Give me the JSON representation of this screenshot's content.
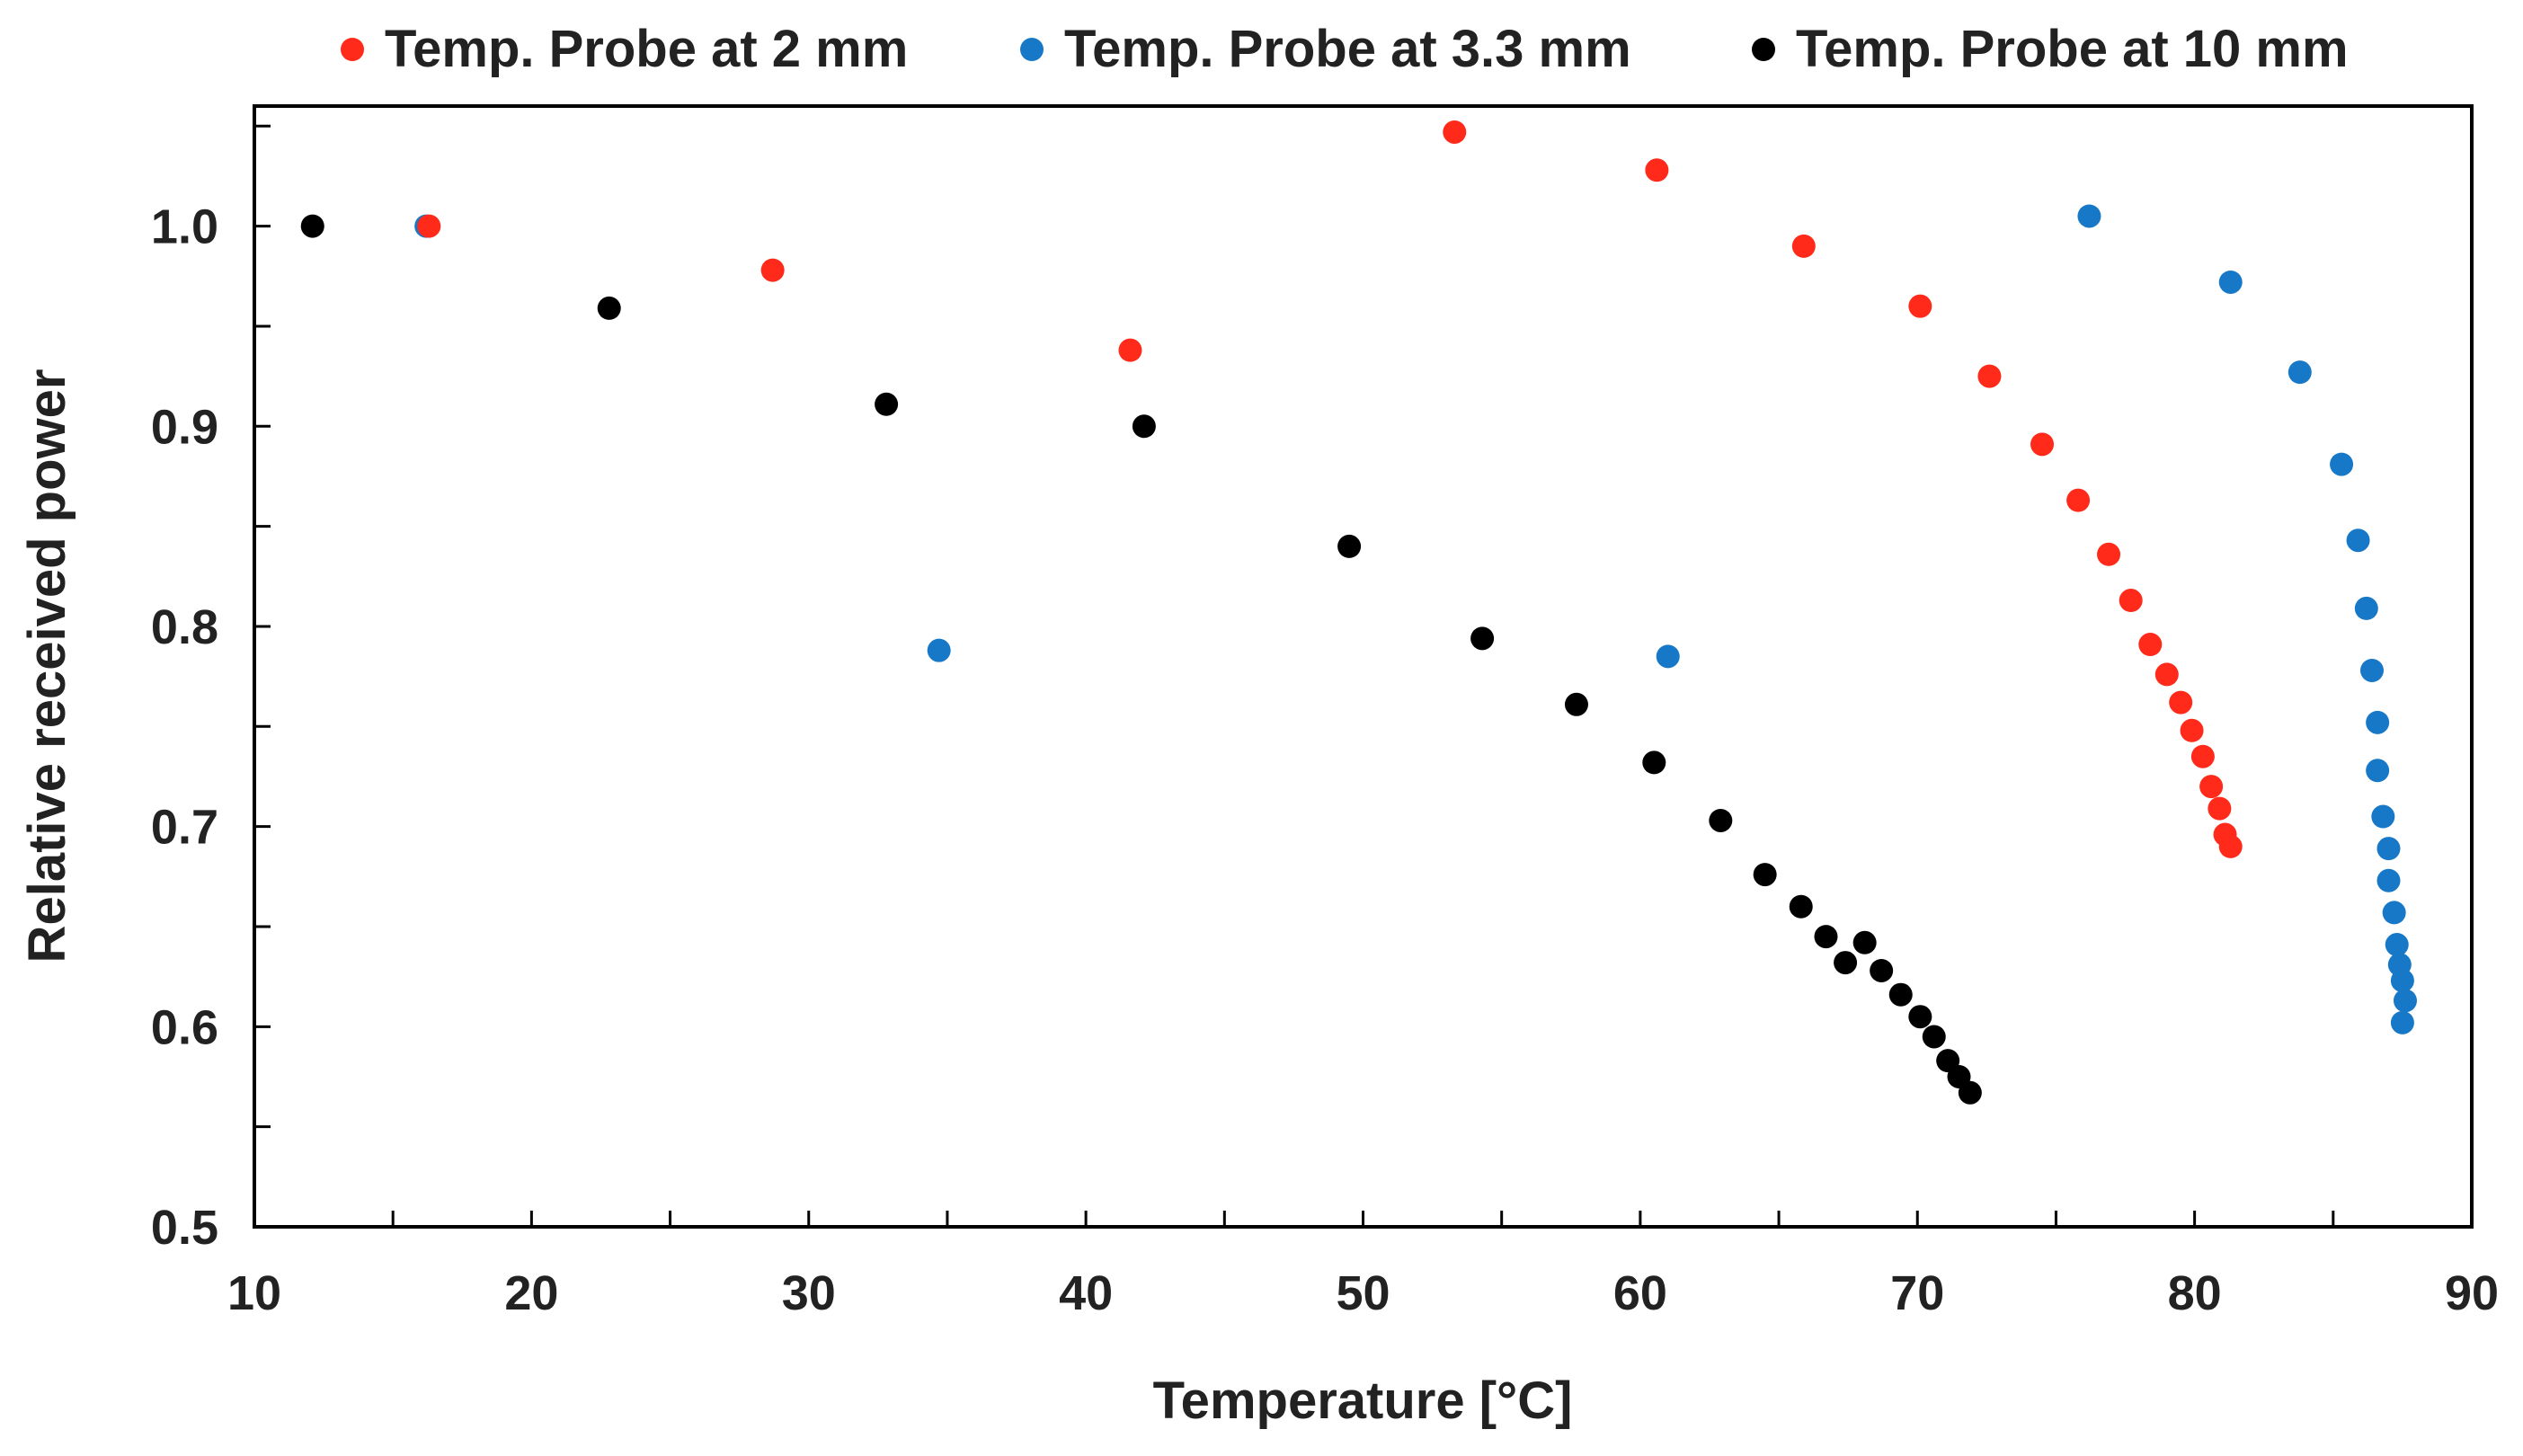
{
  "chart_data": {
    "type": "scatter",
    "title": "",
    "xlabel": "Temperature [°C]",
    "ylabel": "Relative received power",
    "xlim": [
      10,
      90
    ],
    "ylim": [
      0.5,
      1.06
    ],
    "x_ticks": [
      10,
      20,
      30,
      40,
      50,
      60,
      70,
      80,
      90
    ],
    "x_tick_labels": [
      "10",
      "20",
      "30",
      "40",
      "50",
      "60",
      "70",
      "80",
      "90"
    ],
    "y_ticks": [
      0.5,
      0.6,
      0.7,
      0.8,
      0.9,
      1.0
    ],
    "y_tick_labels": [
      "0.5",
      "0.6",
      "0.7",
      "0.8",
      "0.9",
      "1.0"
    ],
    "grid": false,
    "legend_position": "top",
    "series": [
      {
        "name": "Temp. Probe at 2 mm",
        "color": "#ff2a1a",
        "points": [
          [
            16.3,
            1.0
          ],
          [
            28.7,
            0.978
          ],
          [
            41.6,
            0.938
          ],
          [
            53.3,
            1.047
          ],
          [
            60.6,
            1.028
          ],
          [
            65.9,
            0.99
          ],
          [
            70.1,
            0.96
          ],
          [
            72.6,
            0.925
          ],
          [
            74.5,
            0.891
          ],
          [
            75.8,
            0.863
          ],
          [
            76.9,
            0.836
          ],
          [
            77.7,
            0.813
          ],
          [
            78.4,
            0.791
          ],
          [
            79.0,
            0.776
          ],
          [
            79.5,
            0.762
          ],
          [
            79.9,
            0.748
          ],
          [
            80.3,
            0.735
          ],
          [
            80.6,
            0.72
          ],
          [
            80.9,
            0.709
          ],
          [
            81.1,
            0.696
          ],
          [
            81.3,
            0.69
          ]
        ]
      },
      {
        "name": "Temp. Probe at 3.3 mm",
        "color": "#1878c8",
        "points": [
          [
            16.2,
            1.0
          ],
          [
            34.7,
            0.788
          ],
          [
            61.0,
            0.785
          ],
          [
            76.2,
            1.005
          ],
          [
            81.3,
            0.972
          ],
          [
            83.8,
            0.927
          ],
          [
            85.3,
            0.881
          ],
          [
            85.9,
            0.843
          ],
          [
            86.2,
            0.809
          ],
          [
            86.4,
            0.778
          ],
          [
            86.6,
            0.752
          ],
          [
            86.6,
            0.728
          ],
          [
            86.8,
            0.705
          ],
          [
            87.0,
            0.689
          ],
          [
            87.0,
            0.673
          ],
          [
            87.2,
            0.657
          ],
          [
            87.3,
            0.641
          ],
          [
            87.4,
            0.631
          ],
          [
            87.5,
            0.623
          ],
          [
            87.6,
            0.613
          ],
          [
            87.5,
            0.602
          ]
        ]
      },
      {
        "name": "Temp. Probe at 10 mm",
        "color": "#000000",
        "points": [
          [
            12.1,
            1.0
          ],
          [
            22.8,
            0.959
          ],
          [
            32.8,
            0.911
          ],
          [
            42.1,
            0.9
          ],
          [
            49.5,
            0.84
          ],
          [
            54.3,
            0.794
          ],
          [
            57.7,
            0.761
          ],
          [
            60.5,
            0.732
          ],
          [
            62.9,
            0.703
          ],
          [
            64.5,
            0.676
          ],
          [
            65.8,
            0.66
          ],
          [
            66.7,
            0.645
          ],
          [
            67.4,
            0.632
          ],
          [
            68.1,
            0.642
          ],
          [
            68.7,
            0.628
          ],
          [
            69.4,
            0.616
          ],
          [
            70.1,
            0.605
          ],
          [
            70.6,
            0.595
          ],
          [
            71.1,
            0.583
          ],
          [
            71.5,
            0.575
          ],
          [
            71.9,
            0.567
          ]
        ]
      }
    ]
  }
}
